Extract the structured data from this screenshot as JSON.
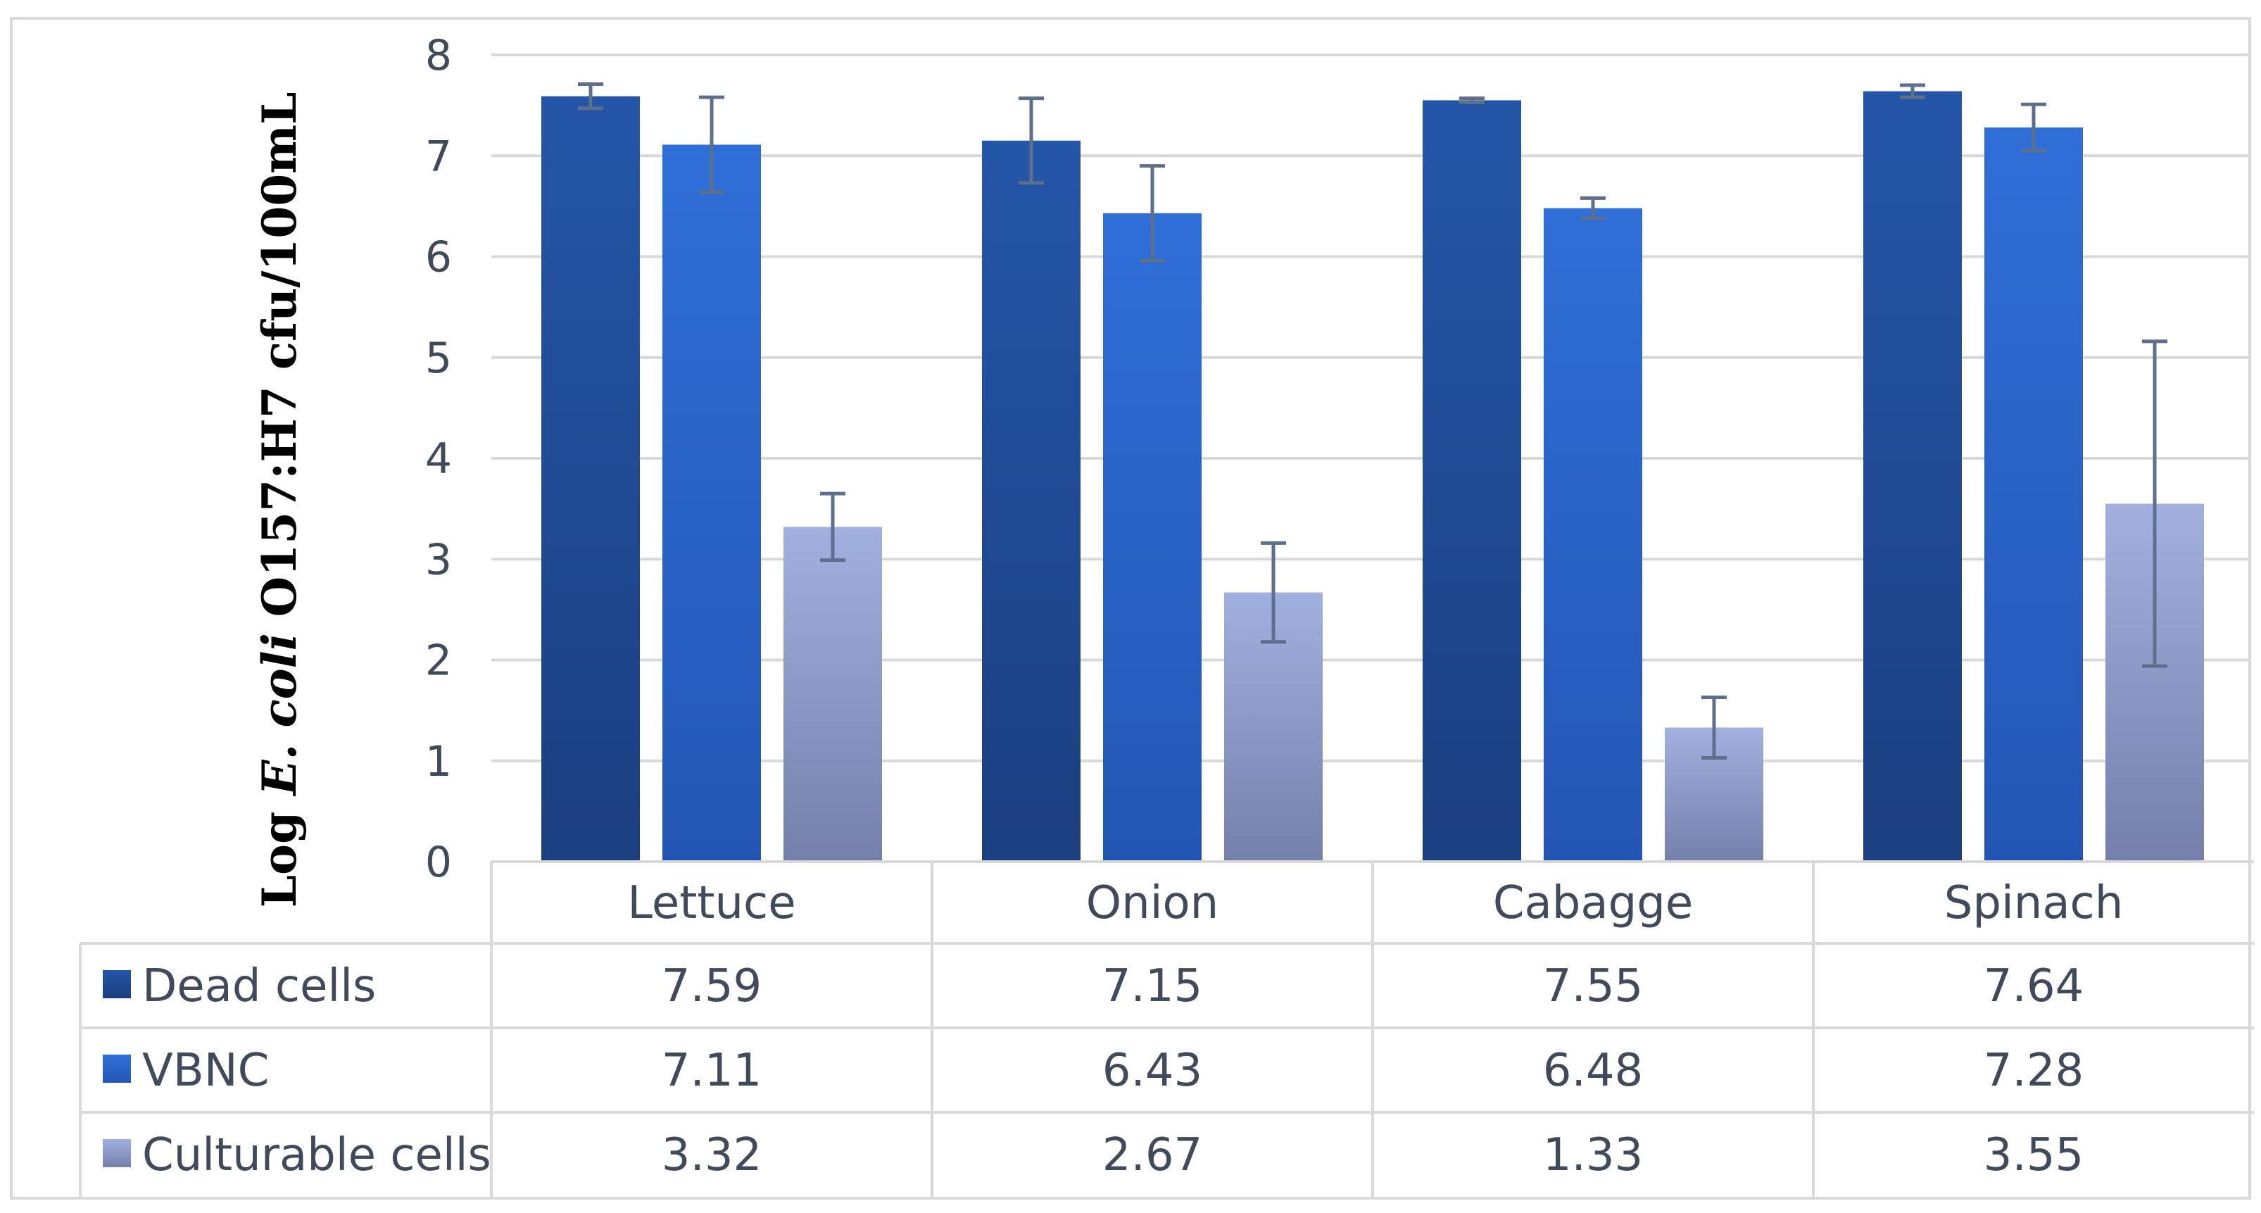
{
  "chart_data": {
    "type": "bar",
    "title": "",
    "ylabel_parts": {
      "prefix": "Log ",
      "italic": "E. coli",
      "suffix": " O157:H7 cfu/100mL"
    },
    "ylim": [
      0,
      8
    ],
    "yticks": [
      "0",
      "1",
      "2",
      "3",
      "4",
      "5",
      "6",
      "7",
      "8"
    ],
    "categories": [
      "Lettuce",
      "Onion",
      "Cabagge",
      "Spinach"
    ],
    "series": [
      {
        "name": "Dead cells",
        "color": "#1f4e9c",
        "values": [
          7.59,
          7.15,
          7.55,
          7.64
        ],
        "labels": [
          "7.59",
          "7.15",
          "7.55",
          "7.64"
        ],
        "errors": [
          0.12,
          0.42,
          0.02,
          0.06
        ]
      },
      {
        "name": "VBNC",
        "color": "#2e6bd4",
        "values": [
          7.11,
          6.43,
          6.48,
          7.28
        ],
        "labels": [
          "7.11",
          "6.43",
          "6.48",
          "7.28"
        ],
        "errors": [
          0.47,
          0.47,
          0.1,
          0.23
        ]
      },
      {
        "name": "Culturable cells",
        "color": "#9aaadc",
        "values": [
          3.32,
          2.67,
          1.33,
          3.55
        ],
        "labels": [
          "3.32",
          "2.67",
          "1.33",
          "3.55"
        ],
        "errors": [
          0.33,
          0.49,
          0.3,
          1.61
        ]
      }
    ],
    "legend": "data-table",
    "grid": true
  }
}
